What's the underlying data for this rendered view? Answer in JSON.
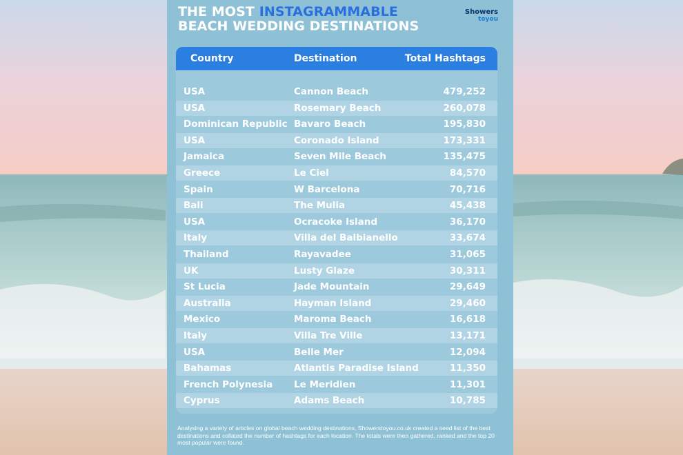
{
  "title": {
    "line1_prefix": "THE MOST ",
    "line1_highlight": "INSTAGRAMMABLE",
    "line2": "BEACH WEDDING DESTINATIONS"
  },
  "logo": {
    "line1": "Showers",
    "line2": "toyou"
  },
  "colors": {
    "panel": "#8ec1d6",
    "header": "#2a7fe0",
    "highlight": "#2a6fe0",
    "text": "#ffffff"
  },
  "chart_data": {
    "type": "table",
    "columns": [
      "Country",
      "Destination",
      "Total Hashtags"
    ],
    "rows": [
      [
        "USA",
        "Cannon Beach",
        "479,252"
      ],
      [
        "USA",
        "Rosemary Beach",
        "260,078"
      ],
      [
        "Dominican Republic",
        "Bavaro Beach",
        "195,830"
      ],
      [
        "USA",
        "Coronado Island",
        "173,331"
      ],
      [
        "Jamaica",
        "Seven Mile Beach",
        "135,475"
      ],
      [
        "Greece",
        "Le Ciel",
        "84,570"
      ],
      [
        "Spain",
        "W Barcelona",
        "70,716"
      ],
      [
        "Bali",
        "The Mulia",
        "45,438"
      ],
      [
        "USA",
        "Ocracoke Island",
        "36,170"
      ],
      [
        "Italy",
        "Villa del Balbianello",
        "33,674"
      ],
      [
        "Thailand",
        "Rayavadee",
        "31,065"
      ],
      [
        "UK",
        "Lusty Glaze",
        "30,311"
      ],
      [
        "St Lucia",
        "Jade Mountain",
        "29,649"
      ],
      [
        "Australia",
        "Hayman Island",
        "29,460"
      ],
      [
        "Mexico",
        "Maroma Beach",
        "16,618"
      ],
      [
        "Italy",
        "Villa Tre Ville",
        "13,171"
      ],
      [
        "USA",
        "Belle Mer",
        "12,094"
      ],
      [
        "Bahamas",
        "Atlantis Paradise Island",
        "11,350"
      ],
      [
        "French Polynesia",
        "Le Meridien",
        "11,301"
      ],
      [
        "Cyprus",
        "Adams Beach",
        "10,785"
      ]
    ]
  },
  "footnote": "Analysing a variety of articles on global beach wedding destinations, Showerstoyou.co.uk created a seed list of the best destinations and collated the number of hashtags for each location. The totals were then gathered, ranked and the top 20 most popular were found."
}
